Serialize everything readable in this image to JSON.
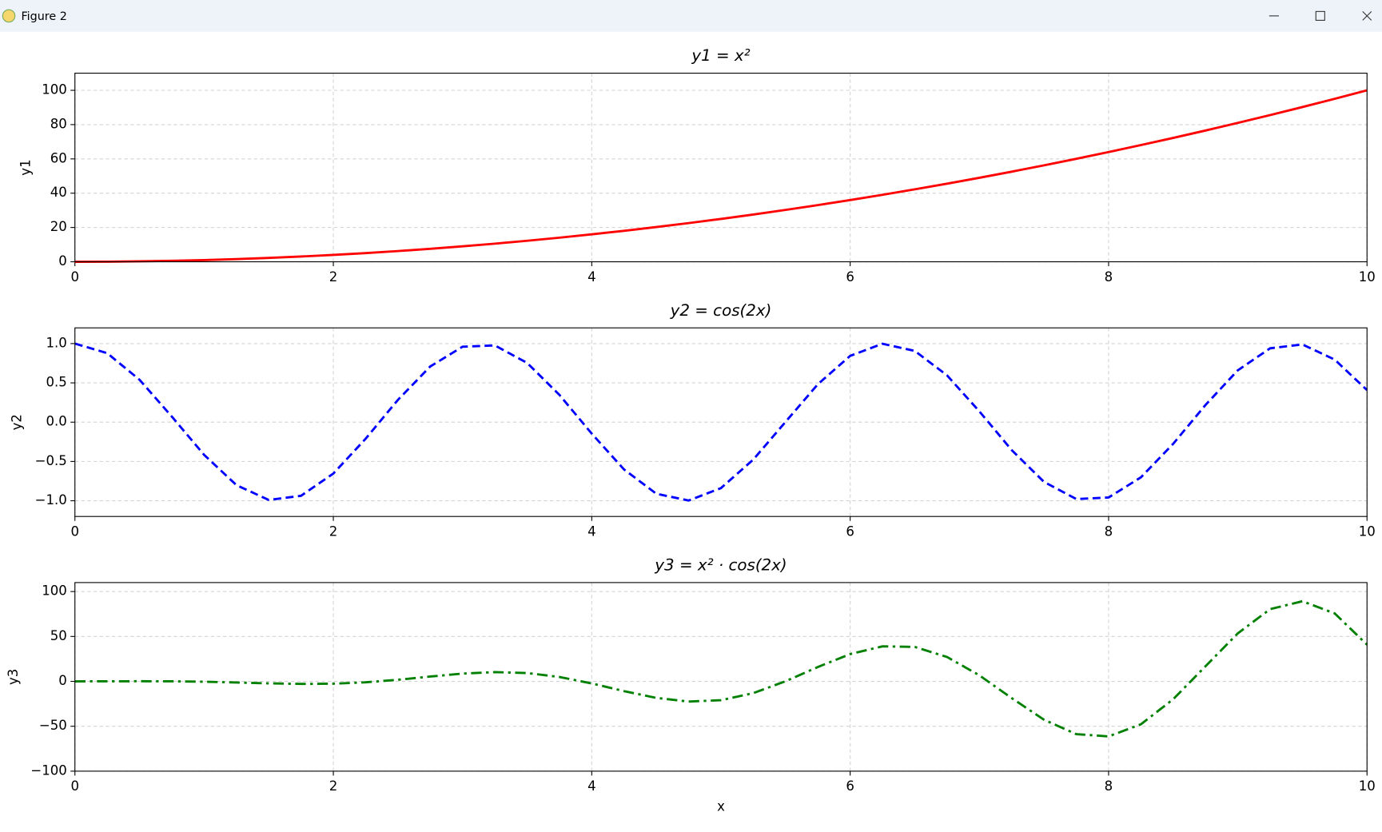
{
  "window": {
    "title": "Figure 2"
  },
  "chart_data": [
    {
      "type": "line",
      "title": "y1 = x²",
      "ylabel": "y1",
      "color": "#ff0000",
      "linestyle": "solid",
      "xlim": [
        0,
        10
      ],
      "xticks": [
        0,
        2,
        4,
        6,
        8,
        10
      ],
      "ylim": [
        0,
        110
      ],
      "yticks": [
        0,
        20,
        40,
        60,
        80,
        100
      ],
      "grid": true,
      "x": [
        0,
        0.25,
        0.5,
        0.75,
        1,
        1.25,
        1.5,
        1.75,
        2,
        2.25,
        2.5,
        2.75,
        3,
        3.25,
        3.5,
        3.75,
        4,
        4.25,
        4.5,
        4.75,
        5,
        5.25,
        5.5,
        5.75,
        6,
        6.25,
        6.5,
        6.75,
        7,
        7.25,
        7.5,
        7.75,
        8,
        8.25,
        8.5,
        8.75,
        9,
        9.25,
        9.5,
        9.75,
        10
      ],
      "values": [
        0,
        0.06,
        0.25,
        0.56,
        1,
        1.56,
        2.25,
        3.06,
        4,
        5.06,
        6.25,
        7.56,
        9,
        10.56,
        12.25,
        14.06,
        16,
        18.06,
        20.25,
        22.56,
        25,
        27.56,
        30.25,
        33.06,
        36,
        39.06,
        42.25,
        45.56,
        49,
        52.56,
        56.25,
        60.06,
        64,
        68.06,
        72.25,
        76.56,
        81,
        85.56,
        90.25,
        95.06,
        100
      ]
    },
    {
      "type": "line",
      "title": "y2 = cos(2x)",
      "ylabel": "y2",
      "color": "#0000ff",
      "linestyle": "dashed",
      "xlim": [
        0,
        10
      ],
      "xticks": [
        0,
        2,
        4,
        6,
        8,
        10
      ],
      "ylim": [
        -1.2,
        1.2
      ],
      "yticks": [
        {
          "value": -1,
          "label": "−1.0"
        },
        {
          "value": -0.5,
          "label": "−0.5"
        },
        {
          "value": 0,
          "label": "0.0"
        },
        0.5,
        {
          "value": 1,
          "label": "1.0"
        }
      ],
      "grid": true,
      "x": [
        0,
        0.25,
        0.5,
        0.75,
        1,
        1.25,
        1.5,
        1.75,
        2,
        2.25,
        2.5,
        2.75,
        3,
        3.25,
        3.5,
        3.75,
        4,
        4.25,
        4.5,
        4.75,
        5,
        5.25,
        5.5,
        5.75,
        6,
        6.25,
        6.5,
        6.75,
        7,
        7.25,
        7.5,
        7.75,
        8,
        8.25,
        8.5,
        8.75,
        9,
        9.25,
        9.5,
        9.75,
        10
      ],
      "values": [
        1,
        0.878,
        0.54,
        0.071,
        -0.416,
        -0.801,
        -0.99,
        -0.937,
        -0.654,
        -0.211,
        0.284,
        0.709,
        0.96,
        0.977,
        0.754,
        0.347,
        -0.146,
        -0.602,
        -0.911,
        -0.997,
        -0.839,
        -0.476,
        0.004,
        0.483,
        0.844,
        0.998,
        0.907,
        0.595,
        0.137,
        -0.355,
        -0.76,
        -0.978,
        -0.958,
        -0.702,
        -0.275,
        0.219,
        0.66,
        0.94,
        0.989,
        0.796,
        0.408
      ]
    },
    {
      "type": "line",
      "title": "y3 = x² · cos(2x)",
      "ylabel": "y3",
      "xlabel": "x",
      "color": "#008000",
      "linestyle": "dashdot",
      "xlim": [
        0,
        10
      ],
      "xticks": [
        0,
        2,
        4,
        6,
        8,
        10
      ],
      "ylim": [
        -100,
        110
      ],
      "yticks": [
        {
          "value": -100,
          "label": "−100"
        },
        {
          "value": -50,
          "label": "−50"
        },
        0,
        50,
        100
      ],
      "grid": true,
      "x": [
        0,
        0.25,
        0.5,
        0.75,
        1,
        1.25,
        1.5,
        1.75,
        2,
        2.25,
        2.5,
        2.75,
        3,
        3.25,
        3.5,
        3.75,
        4,
        4.25,
        4.5,
        4.75,
        5,
        5.25,
        5.5,
        5.75,
        6,
        6.25,
        6.5,
        6.75,
        7,
        7.25,
        7.5,
        7.75,
        8,
        8.25,
        8.5,
        8.75,
        9,
        9.25,
        9.5,
        9.75,
        10
      ],
      "values": [
        0,
        0.05,
        0.14,
        0.04,
        -0.42,
        -1.25,
        -2.23,
        -2.87,
        -2.61,
        -1.07,
        1.77,
        5.36,
        8.64,
        10.32,
        9.24,
        4.87,
        -2.33,
        -10.87,
        -18.45,
        -22.5,
        -20.98,
        -13.11,
        0.13,
        15.98,
        30.38,
        38.98,
        38.34,
        27.11,
        6.7,
        -18.65,
        -42.73,
        -58.76,
        -61.29,
        -47.8,
        -19.88,
        16.8,
        53.48,
        80.39,
        89.23,
        75.65,
        40.81
      ]
    }
  ]
}
